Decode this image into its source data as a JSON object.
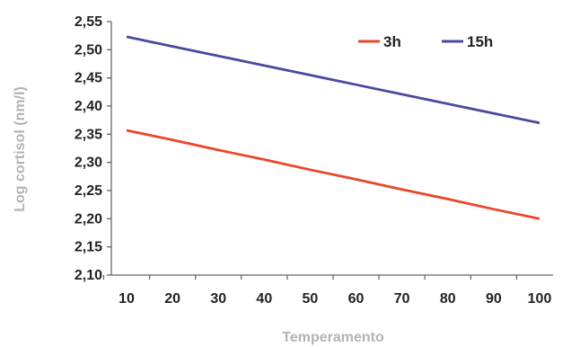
{
  "chart_data": {
    "type": "line",
    "xlabel": "Temperamento",
    "ylabel": "Log cortisol (nm/l)",
    "x": [
      10,
      20,
      30,
      40,
      50,
      60,
      70,
      80,
      90,
      100
    ],
    "xlim": [
      10,
      100
    ],
    "ylim": [
      2.1,
      2.55
    ],
    "x_ticks": [
      "10",
      "20",
      "30",
      "40",
      "50",
      "60",
      "70",
      "80",
      "90",
      "100"
    ],
    "y_ticks": [
      {
        "value": 2.1,
        "label": "2,10"
      },
      {
        "value": 2.15,
        "label": "2,15"
      },
      {
        "value": 2.2,
        "label": "2,20"
      },
      {
        "value": 2.25,
        "label": "2,25"
      },
      {
        "value": 2.3,
        "label": "2,30"
      },
      {
        "value": 2.35,
        "label": "2,35"
      },
      {
        "value": 2.4,
        "label": "2,40"
      },
      {
        "value": 2.45,
        "label": "2,45"
      },
      {
        "value": 2.5,
        "label": "2,50"
      },
      {
        "value": 2.55,
        "label": "2,55"
      }
    ],
    "grid": false,
    "legend": "top-right",
    "series": [
      {
        "name": "3h",
        "color": "#e8472a",
        "values": [
          2.357,
          2.34,
          2.322,
          2.305,
          2.287,
          2.27,
          2.252,
          2.235,
          2.217,
          2.2
        ]
      },
      {
        "name": "15h",
        "color": "#4a4a9c",
        "values": [
          2.523,
          2.506,
          2.489,
          2.472,
          2.455,
          2.438,
          2.421,
          2.404,
          2.387,
          2.37
        ]
      }
    ]
  }
}
